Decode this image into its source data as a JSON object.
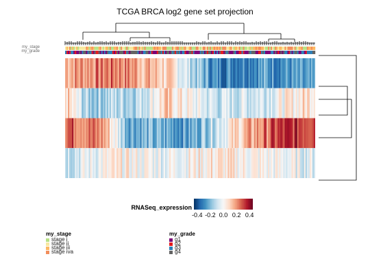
{
  "chart_data": {
    "type": "heatmap",
    "title": "TCGA BRCA log2 gene set projection",
    "annotation_rows": [
      "my_stage",
      "my_grade"
    ],
    "n_rows": 4,
    "row_profiles": [
      {
        "segments": [
          [
            0.0,
            0.18
          ],
          [
            0.2,
            0.25
          ],
          [
            0.4,
            0.1
          ],
          [
            0.6,
            -0.3
          ],
          [
            0.8,
            -0.25
          ],
          [
            1.0,
            -0.3
          ]
        ]
      },
      {
        "segments": [
          [
            0.0,
            0.12
          ],
          [
            0.08,
            -0.15
          ],
          [
            0.3,
            -0.1
          ],
          [
            0.4,
            0.1
          ],
          [
            0.6,
            -0.1
          ],
          [
            0.8,
            -0.05
          ],
          [
            1.0,
            0.1
          ]
        ]
      },
      {
        "segments": [
          [
            0.0,
            0.3
          ],
          [
            0.15,
            0.2
          ],
          [
            0.25,
            -0.2
          ],
          [
            0.5,
            -0.25
          ],
          [
            0.7,
            0.1
          ],
          [
            0.85,
            0.3
          ],
          [
            1.0,
            0.35
          ]
        ]
      },
      {
        "segments": [
          [
            0.0,
            -0.08
          ],
          [
            0.2,
            0.02
          ],
          [
            0.4,
            -0.02
          ],
          [
            0.6,
            0.05
          ],
          [
            0.8,
            0.0
          ],
          [
            1.0,
            -0.05
          ]
        ]
      }
    ],
    "colorkey": {
      "title": "RNASeq_expression",
      "ticks": [
        "-0.4",
        "-0.2",
        "0.0",
        "0.2",
        "0.4"
      ],
      "range": [
        -0.45,
        0.45
      ],
      "colors": [
        "#053061",
        "#2166ac",
        "#4393c3",
        "#92c5de",
        "#d1e5f0",
        "#f7f7f7",
        "#fddbc7",
        "#f4a582",
        "#d6604d",
        "#b2182b",
        "#67001f"
      ]
    },
    "legends": [
      {
        "title": "my_stage",
        "items": [
          {
            "label": "stage i",
            "color": "#b8e186"
          },
          {
            "label": "stage ii",
            "color": "#f6e8a0"
          },
          {
            "label": "stage iii",
            "color": "#fdb863"
          },
          {
            "label": "stage iva",
            "color": "#f28e5c"
          }
        ]
      },
      {
        "title": "my_grade",
        "items": [
          {
            "label": "g1",
            "color": "#7a0177"
          },
          {
            "label": "g2",
            "color": "#e31a1c"
          },
          {
            "label": "g3",
            "color": "#2c7fb8"
          },
          {
            "label": "g4",
            "color": "#636363"
          }
        ]
      }
    ]
  }
}
